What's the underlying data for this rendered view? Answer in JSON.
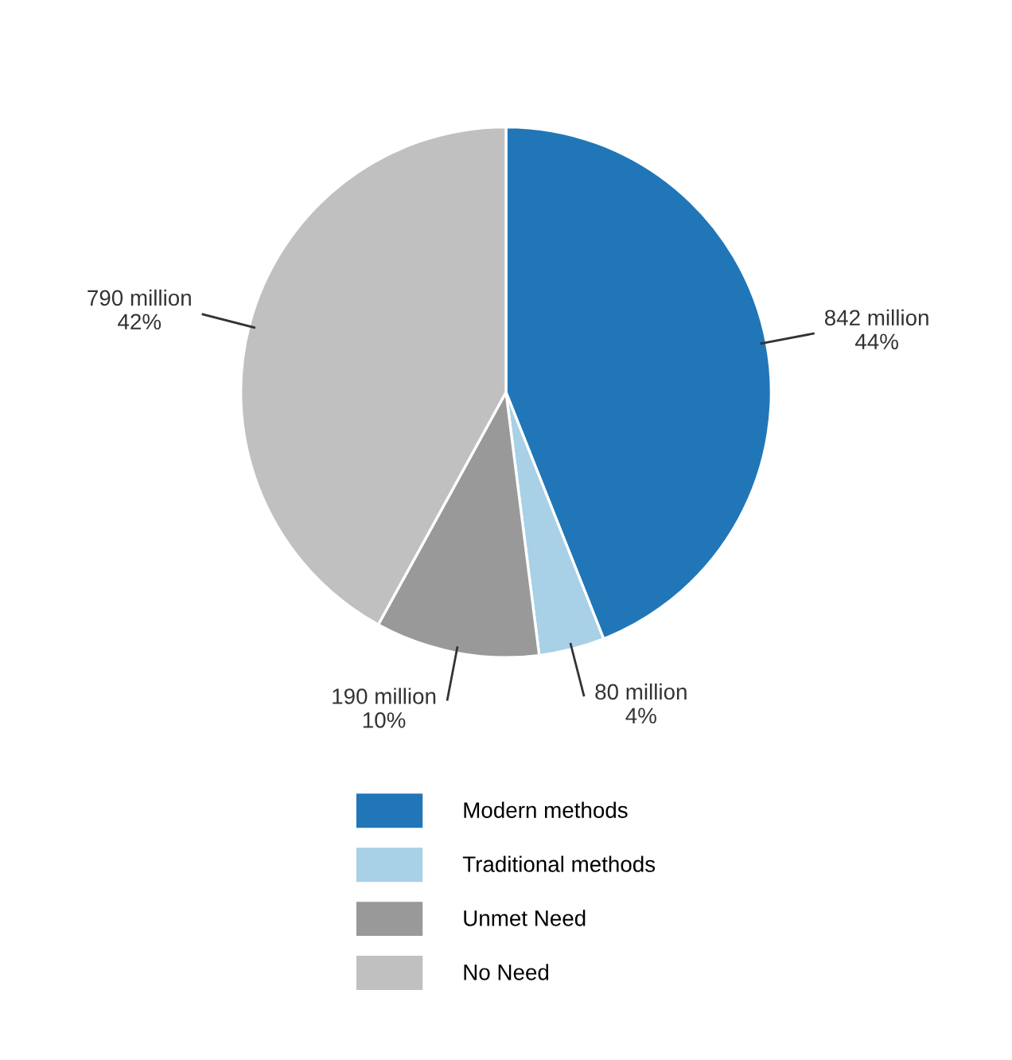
{
  "chart_data": {
    "type": "pie",
    "categories": [
      "Modern methods",
      "Traditional methods",
      "Unmet Need",
      "No Need"
    ],
    "values": [
      44,
      4,
      10,
      42
    ],
    "colors": [
      "#2176b8",
      "#a8d0e6",
      "#999999",
      "#c0c0c0"
    ],
    "value_labels": [
      "842 million\n44%",
      "80 million\n4%",
      "190 million\n10%",
      "790 million\n42%"
    ],
    "legend": "bottom"
  }
}
